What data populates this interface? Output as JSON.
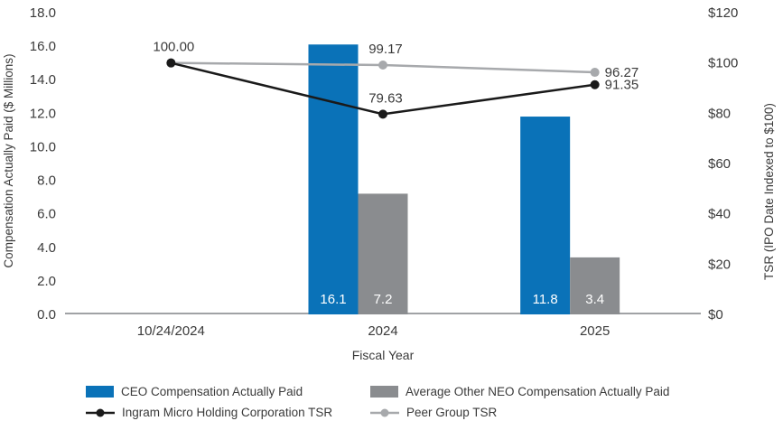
{
  "chart_data": {
    "type": "combo_bar_line",
    "categories": [
      "10/24/2024",
      "2024",
      "2025"
    ],
    "x_axis_label": "Fiscal Year",
    "left_axis": {
      "title": "Compensation Actually Paid ($ Millions)",
      "min": 0,
      "max": 18,
      "ticks": [
        "18.0",
        "16.0",
        "14.0",
        "12.0",
        "10.0",
        "8.0",
        "6.0",
        "4.0",
        "2.0",
        "0.0"
      ]
    },
    "right_axis": {
      "title": "TSR (IPO Date Indexed to $100)",
      "min": 0,
      "max": 120,
      "ticks": [
        "$120",
        "$100",
        "$80",
        "$60",
        "$40",
        "$20",
        "$0"
      ]
    },
    "bar_series": [
      {
        "name": "CEO Compensation Actually Paid",
        "color": "#0A72B8",
        "axis": "left",
        "values": [
          null,
          16.1,
          11.8
        ],
        "value_labels": [
          "",
          "16.1",
          "11.8"
        ]
      },
      {
        "name": "Average Other NEO Compensation Actually Paid",
        "color": "#8A8C8F",
        "axis": "left",
        "values": [
          null,
          7.2,
          3.4
        ],
        "value_labels": [
          "",
          "7.2",
          "3.4"
        ]
      }
    ],
    "line_series": [
      {
        "name": "Peer Group TSR",
        "color": "#A7A9AC",
        "axis": "right",
        "values": [
          100.0,
          99.17,
          96.27
        ],
        "point_labels": [
          "",
          "99.17",
          "96.27"
        ],
        "label_positions": [
          "above",
          "above",
          "right"
        ]
      },
      {
        "name": "Ingram Micro Holding Corporation TSR",
        "color": "#1A1A1A",
        "axis": "right",
        "values": [
          100.0,
          79.63,
          91.35
        ],
        "point_labels": [
          "100.00",
          "79.63",
          "91.35"
        ],
        "label_positions": [
          "above",
          "above",
          "right"
        ]
      }
    ],
    "legend": {
      "items": [
        {
          "label": "CEO Compensation Actually Paid",
          "swatch": "bar",
          "color": "#0A72B8"
        },
        {
          "label": "Average Other NEO Compensation Actually Paid",
          "swatch": "bar",
          "color": "#8A8C8F"
        },
        {
          "label": "Ingram Micro Holding Corporation TSR",
          "swatch": "line-dot",
          "color": "#1A1A1A"
        },
        {
          "label": "Peer Group TSR",
          "swatch": "line-dot",
          "color": "#A7A9AC"
        }
      ]
    },
    "colors": {
      "text": "#3A3A3A",
      "bar_value_text": "#FFFFFF",
      "axis_line": "#A0A2A5",
      "background": "#FFFFFF"
    }
  }
}
